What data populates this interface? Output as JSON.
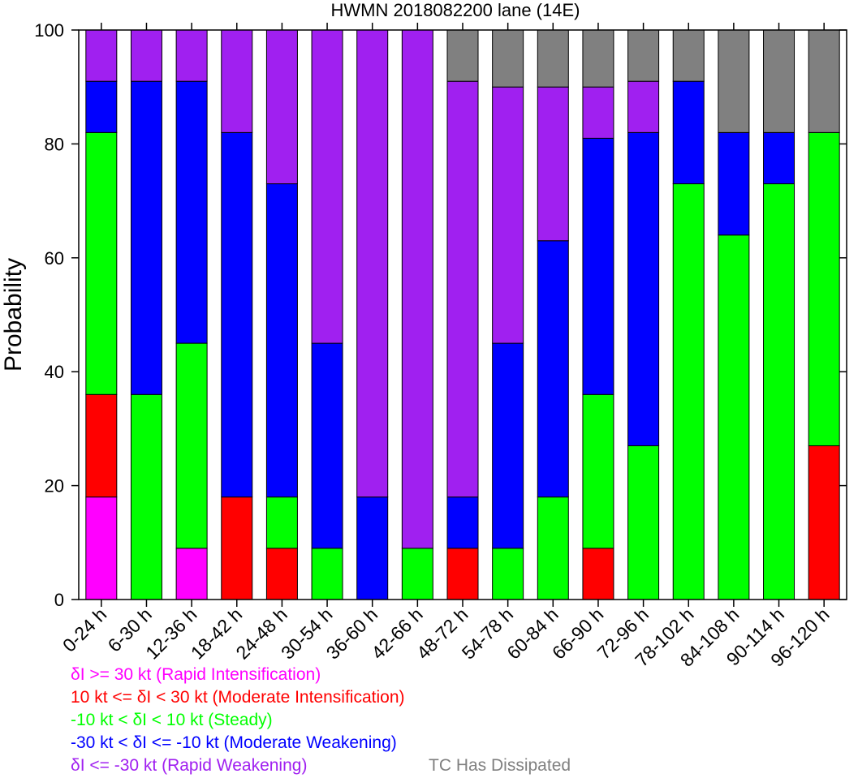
{
  "chart_data": {
    "type": "bar",
    "stacked": true,
    "title": "HWMN 2018082200 lane (14E)",
    "xlabel": "",
    "ylabel": "Probability",
    "ylim": [
      0,
      100
    ],
    "yticks": [
      0,
      20,
      40,
      60,
      80,
      100
    ],
    "grid": false,
    "legend_position": "bottom",
    "categories": [
      "0-24 h",
      "6-30 h",
      "12-36 h",
      "18-42 h",
      "24-48 h",
      "30-54 h",
      "36-60 h",
      "42-66 h",
      "48-72 h",
      "54-78 h",
      "60-84 h",
      "66-90 h",
      "72-96 h",
      "78-102 h",
      "84-108 h",
      "90-114 h",
      "96-120 h"
    ],
    "series": [
      {
        "name": "δI >= 30 kt (Rapid Intensification)",
        "color": "#ff00ff",
        "values": [
          18,
          0,
          9,
          0,
          0,
          0,
          0,
          0,
          0,
          0,
          0,
          0,
          0,
          0,
          0,
          0,
          0
        ]
      },
      {
        "name": "10 kt <= δI < 30 kt (Moderate Intensification)",
        "color": "#ff0000",
        "values": [
          18,
          0,
          0,
          18,
          9,
          0,
          0,
          0,
          9,
          0,
          0,
          9,
          0,
          0,
          0,
          0,
          27
        ]
      },
      {
        "name": "-10 kt < δI < 10 kt (Steady)",
        "color": "#00ff00",
        "values": [
          46,
          36,
          36,
          0,
          9,
          9,
          0,
          9,
          0,
          9,
          18,
          27,
          27,
          73,
          64,
          73,
          55
        ]
      },
      {
        "name": "-30 kt < δI <= -10 kt (Moderate Weakening)",
        "color": "#0000ff",
        "values": [
          9,
          55,
          46,
          64,
          55,
          36,
          18,
          0,
          9,
          36,
          45,
          45,
          55,
          18,
          18,
          9,
          0
        ]
      },
      {
        "name": "δI <= -30 kt (Rapid Weakening)",
        "color": "#a020f0",
        "values": [
          9,
          9,
          9,
          18,
          27,
          55,
          82,
          91,
          73,
          45,
          27,
          9,
          9,
          0,
          0,
          0,
          0
        ]
      },
      {
        "name": "TC Has Dissipated",
        "color": "#808080",
        "values": [
          0,
          0,
          0,
          0,
          0,
          0,
          0,
          0,
          9,
          10,
          10,
          10,
          9,
          9,
          18,
          18,
          18
        ]
      }
    ]
  }
}
